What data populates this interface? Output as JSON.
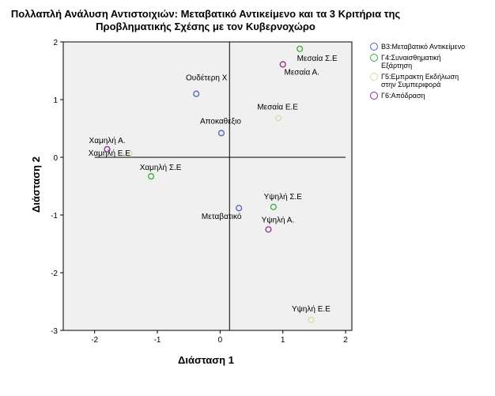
{
  "chart_data": {
    "type": "scatter",
    "title_lines": [
      "Πολλαπλή Ανάλυση Αντιστοιχιών: Μεταβατικό Αντικείμενο και τα 3 Κριτήρια της",
      "Προβληματικής Σχέσης με τον Κυβερνοχώρο"
    ],
    "xlabel": "Διάσταση 1",
    "ylabel": "Διάσταση 2",
    "xlim": [
      -2.5,
      2.1
    ],
    "ylim": [
      -3,
      2
    ],
    "xticks": [
      -2,
      -1,
      0,
      1,
      2
    ],
    "yticks": [
      -3,
      -2,
      -1,
      0,
      1,
      2
    ],
    "reference_lines": {
      "x": 0.15,
      "y": 0
    },
    "legend_position": "right",
    "series": [
      {
        "name": "B3:Μεταβατικό Αντικείμενο",
        "color": "#4a63b8",
        "points": [
          {
            "label": "Ουδέτερη Χ",
            "x": -0.38,
            "y": 1.1
          },
          {
            "label": "Αποκαθεξιο",
            "x": 0.02,
            "y": 0.42
          },
          {
            "label": "Μεταβατικό",
            "x": 0.3,
            "y": -0.88
          }
        ]
      },
      {
        "name": "Γ4:Συναισθηματική Εξάρτηση",
        "color": "#3aa83a",
        "points": [
          {
            "label": "Μεσαία Σ.Ε",
            "x": 1.27,
            "y": 1.88
          },
          {
            "label": "Χαμηλή Σ.Ε",
            "x": -1.1,
            "y": -0.33
          },
          {
            "label": "Υψηλή Σ.Ε",
            "x": 0.85,
            "y": -0.86
          }
        ]
      },
      {
        "name": "Γ5:Εμπρακτη Εκδήλωση στην Συμπεριφορά",
        "color": "#dcd8a8",
        "points": [
          {
            "label": "Μεσαία Ε.Ε",
            "x": 0.93,
            "y": 0.68
          },
          {
            "label": "Χαμηλή Ε.Ε",
            "x": -1.45,
            "y": 0.07
          },
          {
            "label": "Υψηλή Ε.Ε",
            "x": 1.45,
            "y": -2.82
          }
        ]
      },
      {
        "name": "Γ6:Απόδραση",
        "color": "#8b2a8f",
        "points": [
          {
            "label": "Μεσαία Α.",
            "x": 1.0,
            "y": 1.61
          },
          {
            "label": "Χαμηλή Α.",
            "x": -1.8,
            "y": 0.14
          },
          {
            "label": "Υψηλή Α.",
            "x": 0.77,
            "y": -1.25
          }
        ]
      }
    ]
  },
  "legend_label_lines": [
    [
      "B3:Μεταβατικό Αντικείμενο"
    ],
    [
      "Γ4:Συναισθηματική",
      "Εξάρτηση"
    ],
    [
      "Γ5:Εμπρακτη Εκδήλωση",
      "στην Συμπεριφορά"
    ],
    [
      "Γ6:Απόδραση"
    ]
  ]
}
